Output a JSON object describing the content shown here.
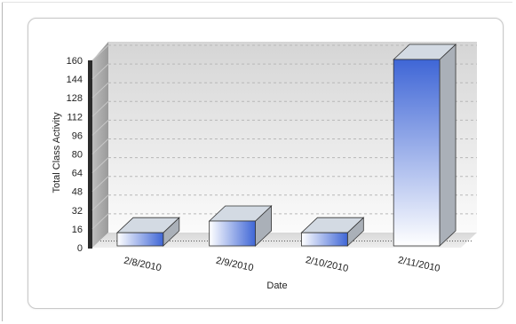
{
  "chart_data": {
    "type": "bar",
    "categories": [
      "2/8/2010",
      "2/9/2010",
      "2/10/2010",
      "2/11/2010"
    ],
    "values": [
      12,
      22,
      12,
      160
    ],
    "xlabel": "Date",
    "ylabel": "Total Class Activity",
    "ylim": [
      0,
      160
    ],
    "yticks": [
      "0",
      "16",
      "32",
      "48",
      "64",
      "80",
      "96",
      "112",
      "128",
      "144",
      "160"
    ],
    "grid": true,
    "legend": "none",
    "style": "3d-bar",
    "colors": {
      "bar_top": "#3f66d6",
      "bar_bottom": "#ffffff",
      "bar_cap": "#d3dae3",
      "bar_side": "#aab0b8",
      "wall": "#dcdcdc",
      "floor": "#e6e6e6",
      "axis_bar": "#2b2b2b"
    }
  }
}
